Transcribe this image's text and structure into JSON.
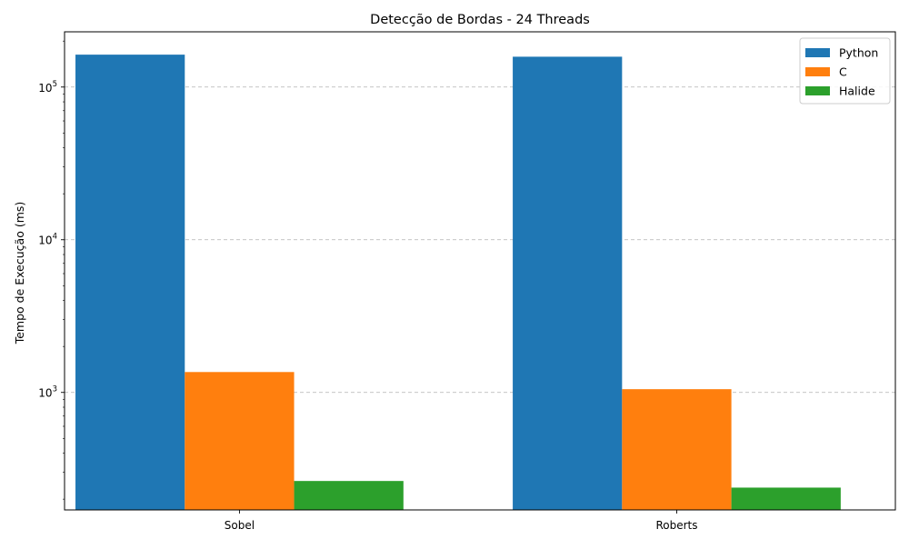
{
  "chart_data": {
    "type": "bar",
    "title": "Detecção de Bordas - 24 Threads",
    "xlabel": "",
    "ylabel": "Tempo de Execução (ms)",
    "yscale": "log",
    "ylim": [
      170,
      230000
    ],
    "yticks": [
      {
        "value": 1000,
        "base": "10",
        "exp": "3"
      },
      {
        "value": 10000,
        "base": "10",
        "exp": "4"
      },
      {
        "value": 100000,
        "base": "10",
        "exp": "5"
      }
    ],
    "grid": "y-major-dashed",
    "legend_position": "top-right",
    "categories": [
      "Sobel",
      "Roberts"
    ],
    "series": [
      {
        "name": "Python",
        "color": "#1f77b4",
        "values": [
          163000,
          158000
        ]
      },
      {
        "name": "C",
        "color": "#ff7f0e",
        "values": [
          1360,
          1050
        ]
      },
      {
        "name": "Halide",
        "color": "#2ca02c",
        "values": [
          263,
          238
        ]
      }
    ]
  }
}
